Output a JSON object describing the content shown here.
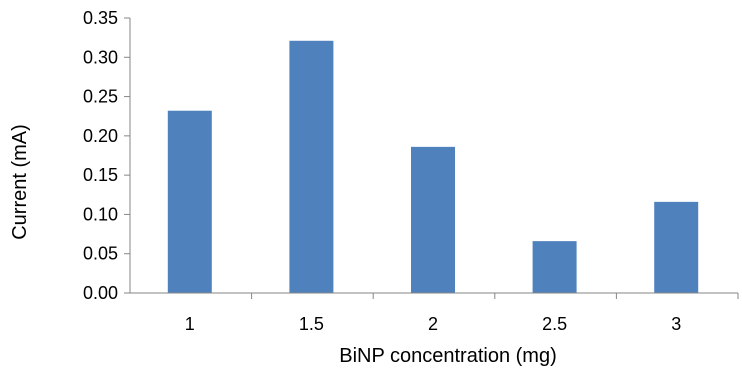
{
  "chart_data": {
    "type": "bar",
    "title": "",
    "xlabel": "BiNP concentration (mg)",
    "ylabel": "Current (mA)",
    "categories": [
      "1",
      "1.5",
      "2",
      "2.5",
      "3"
    ],
    "values": [
      0.232,
      0.321,
      0.186,
      0.066,
      0.116
    ],
    "ylim": [
      0,
      0.35
    ],
    "yticks": [
      "0.00",
      "0.05",
      "0.10",
      "0.15",
      "0.20",
      "0.25",
      "0.30",
      "0.35"
    ],
    "grid": false,
    "legend": "none",
    "bar_color": "#4F81BD"
  }
}
